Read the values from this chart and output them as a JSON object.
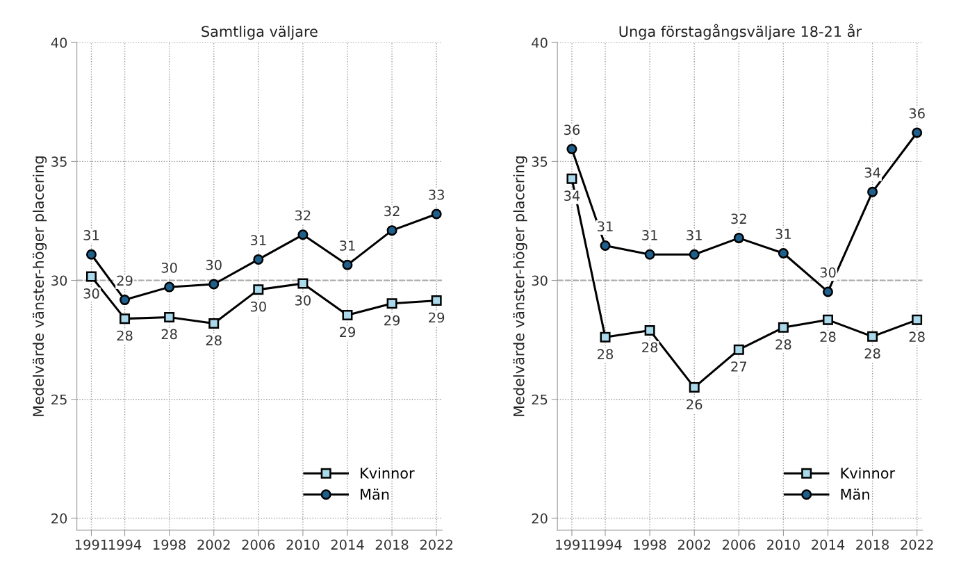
{
  "chart_data": [
    {
      "type": "line",
      "title": "Samtliga väljare",
      "ylabel": "Medelvärde vänster-höger placering",
      "x": [
        1991,
        1994,
        1998,
        2002,
        2006,
        2010,
        2014,
        2018,
        2022
      ],
      "xlim": [
        1989.7,
        2022.5
      ],
      "xticks": [
        1991,
        1994,
        1998,
        2002,
        2006,
        2010,
        2014,
        2018,
        2022
      ],
      "ylim": [
        19.5,
        40
      ],
      "yticks": [
        20,
        25,
        30,
        35,
        40
      ],
      "grid": true,
      "legend": "bottom right",
      "ref_lines": [
        {
          "axis": "y",
          "value": 30,
          "color": "#aaaaaa",
          "line_style": "dashed"
        }
      ],
      "series": [
        {
          "name": "Kvinnor",
          "color": "#a9d9ea",
          "marker": "square",
          "values": [
            30.16,
            28.39,
            28.45,
            28.19,
            29.61,
            29.87,
            28.54,
            29.03,
            29.15
          ],
          "value_labels": [
            "30",
            "28",
            "28",
            "28",
            "30",
            "30",
            "29",
            "29",
            "29"
          ]
        },
        {
          "name": "Män",
          "color": "#1f5f8b",
          "marker": "circle",
          "values": [
            31.09,
            29.18,
            29.72,
            29.84,
            30.88,
            31.92,
            30.65,
            32.1,
            32.79
          ],
          "value_labels": [
            "31",
            "29",
            "30",
            "30",
            "31",
            "32",
            "31",
            "32",
            "33"
          ]
        }
      ]
    },
    {
      "type": "line",
      "title": "Unga förstagångsväljare 18-21 år",
      "ylabel": "Medelvärde vänster-höger placering",
      "x": [
        1991,
        1994,
        1998,
        2002,
        2006,
        2010,
        2014,
        2018,
        2022
      ],
      "xlim": [
        1989.7,
        2022.5
      ],
      "xticks": [
        1991,
        1994,
        1998,
        2002,
        2006,
        2010,
        2014,
        2018,
        2022
      ],
      "ylim": [
        19.5,
        40
      ],
      "yticks": [
        20,
        25,
        30,
        35,
        40
      ],
      "grid": true,
      "legend": "bottom right",
      "ref_lines": [
        {
          "axis": "y",
          "value": 30,
          "color": "#aaaaaa",
          "line_style": "dashed"
        }
      ],
      "series": [
        {
          "name": "Kvinnor",
          "color": "#a9d9ea",
          "marker": "square",
          "values": [
            34.27,
            27.61,
            27.9,
            25.5,
            27.09,
            28.02,
            28.34,
            27.64,
            28.34
          ],
          "value_labels": [
            "34",
            "28",
            "28",
            "26",
            "27",
            "28",
            "28",
            "28",
            "28"
          ]
        },
        {
          "name": "Män",
          "color": "#1f5f8b",
          "marker": "circle",
          "values": [
            35.52,
            31.46,
            31.09,
            31.09,
            31.78,
            31.14,
            29.52,
            33.72,
            36.21
          ],
          "value_labels": [
            "36",
            "31",
            "31",
            "31",
            "32",
            "31",
            "30",
            "34",
            "36"
          ]
        }
      ]
    }
  ]
}
